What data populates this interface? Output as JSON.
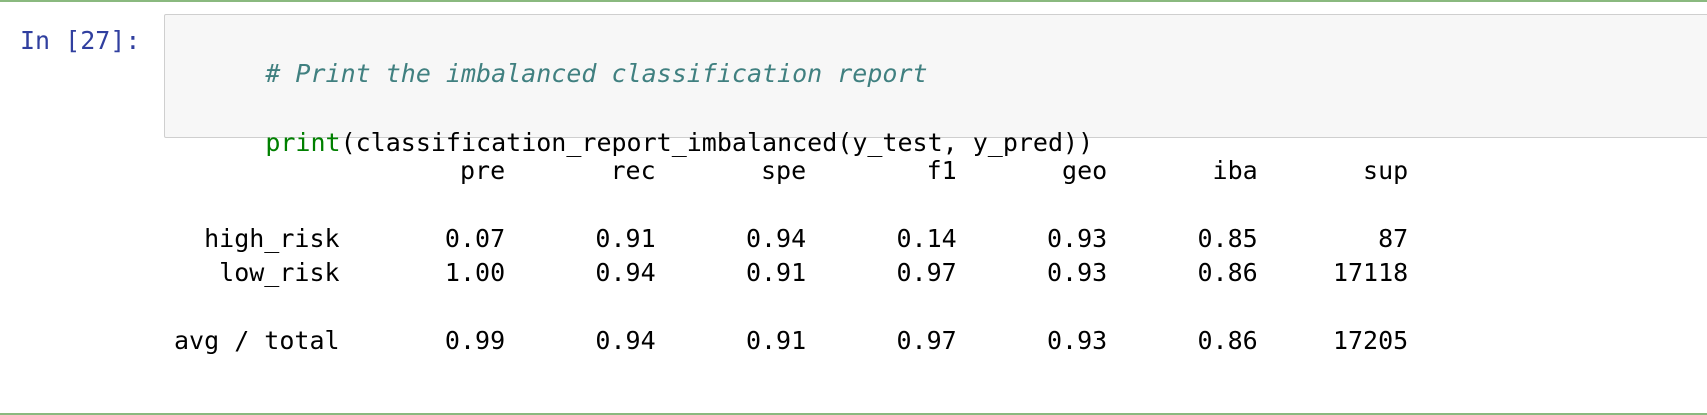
{
  "cell": {
    "prompt": "In [27]:",
    "code": {
      "comment": "# Print the imbalanced classification report",
      "func": "print",
      "rest": "(classification_report_imbalanced(y_test, y_pred))"
    },
    "output": "                   pre       rec       spe        f1       geo       iba       sup\n\n  high_risk       0.07      0.91      0.94      0.14      0.93      0.85        87\n   low_risk       1.00      0.94      0.91      0.97      0.93      0.86     17118\n\navg / total       0.99      0.94      0.91      0.97      0.93      0.86     17205"
  }
}
